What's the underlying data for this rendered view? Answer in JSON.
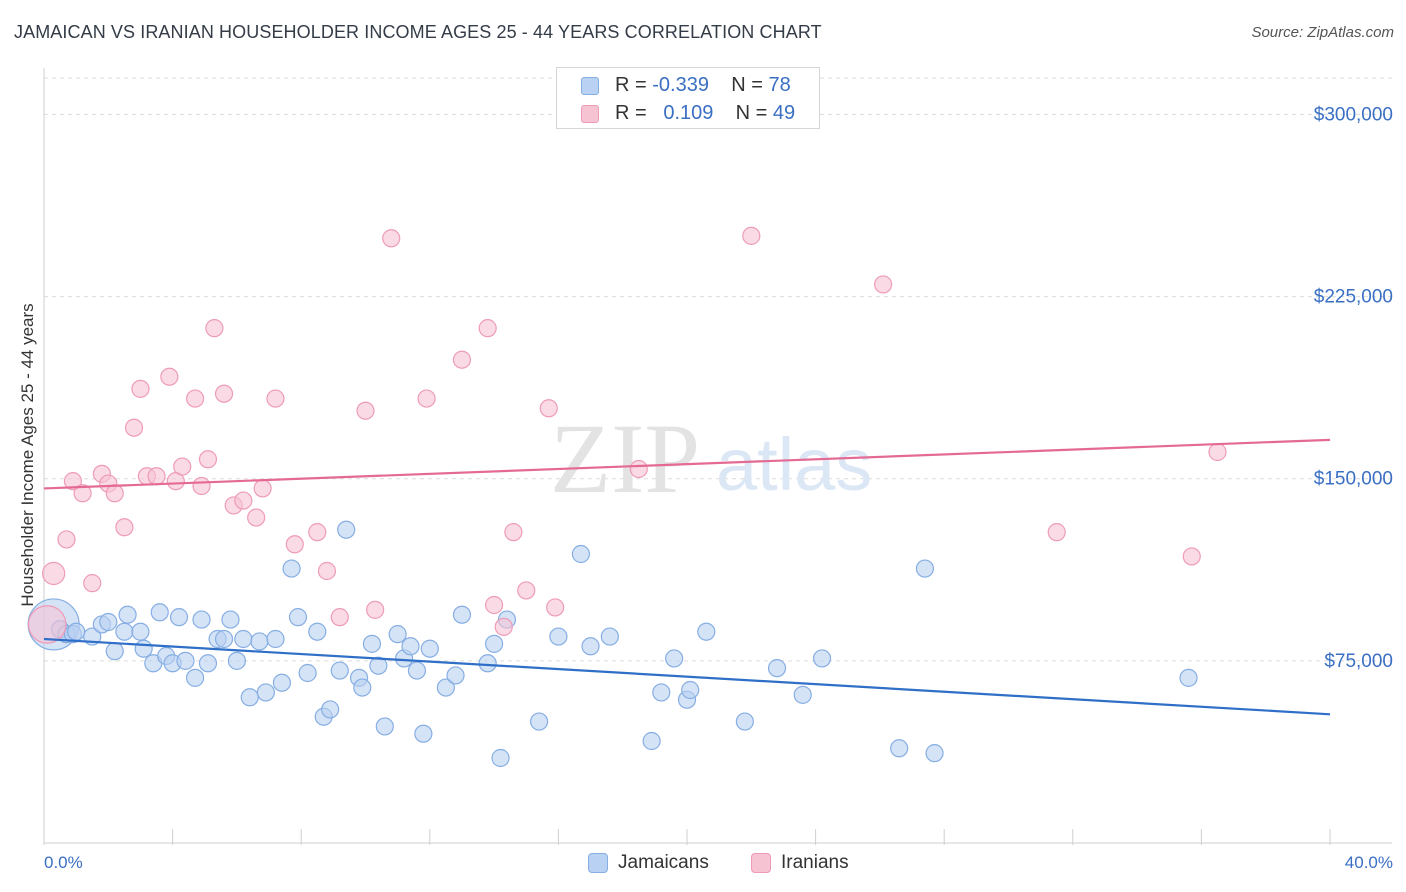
{
  "header": {
    "title": "JAMAICAN VS IRANIAN HOUSEHOLDER INCOME AGES 25 - 44 YEARS CORRELATION CHART",
    "source": "Source: ZipAtlas.com"
  },
  "watermark": {
    "zip": "ZIP",
    "atlas": "atlas"
  },
  "legend_top": [
    {
      "r_label": "R =",
      "r_value": "-0.339",
      "n_label": "N =",
      "n_value": "78"
    },
    {
      "r_label": "R =",
      "r_value": "0.109",
      "n_label": "N =",
      "n_value": "49"
    }
  ],
  "colors": {
    "jamaicans_fill": "#b9d1f2",
    "jamaicans_stroke": "#86aee3",
    "jamaicans_line": "#2f6fc7",
    "iranians_fill": "#f6c3d3",
    "iranians_stroke": "#ee9bb7",
    "iranians_line": "#e46a94",
    "tick_text": "#3a6fc4",
    "grid": "#dcdcdc"
  },
  "chart_data": {
    "type": "scatter",
    "xlabel": "",
    "ylabel": "Householder Income Ages 25 - 44 years",
    "xlim": [
      0,
      40
    ],
    "ylim": [
      0,
      315000
    ],
    "x_tick_labels": {
      "min": "0.0%",
      "max": "40.0%"
    },
    "y_ticks": [
      {
        "value": 75000,
        "label": "$75,000"
      },
      {
        "value": 150000,
        "label": "$150,000"
      },
      {
        "value": 225000,
        "label": "$225,000"
      },
      {
        "value": 300000,
        "label": "$300,000"
      }
    ],
    "grid": true,
    "legend_placement": "bottom",
    "series": [
      {
        "name": "Jamaicans",
        "trend": {
          "x0": 0,
          "y0": 84000,
          "x1": 40,
          "y1": 53000
        },
        "points": [
          [
            0.3,
            90000,
            3
          ],
          [
            0.5,
            88000,
            1
          ],
          [
            0.7,
            86000,
            1
          ],
          [
            0.9,
            86000,
            1
          ],
          [
            1.0,
            87000,
            1
          ],
          [
            1.5,
            85000,
            1
          ],
          [
            1.8,
            90000,
            1
          ],
          [
            2.0,
            91000,
            1
          ],
          [
            2.2,
            79000,
            1
          ],
          [
            2.5,
            87000,
            1
          ],
          [
            2.6,
            94000,
            1
          ],
          [
            3.0,
            87000,
            1
          ],
          [
            3.1,
            80000,
            1
          ],
          [
            3.4,
            74000,
            1
          ],
          [
            3.6,
            95000,
            1
          ],
          [
            3.8,
            77000,
            1
          ],
          [
            4.0,
            74000,
            1
          ],
          [
            4.2,
            93000,
            1
          ],
          [
            4.4,
            75000,
            1
          ],
          [
            4.7,
            68000,
            1
          ],
          [
            4.9,
            92000,
            1
          ],
          [
            5.1,
            74000,
            1
          ],
          [
            5.4,
            84000,
            1
          ],
          [
            5.6,
            84000,
            1
          ],
          [
            5.8,
            92000,
            1
          ],
          [
            6.0,
            75000,
            1
          ],
          [
            6.2,
            84000,
            1
          ],
          [
            6.4,
            60000,
            1
          ],
          [
            6.7,
            83000,
            1
          ],
          [
            6.9,
            62000,
            1
          ],
          [
            7.2,
            84000,
            1
          ],
          [
            7.4,
            66000,
            1
          ],
          [
            7.7,
            113000,
            1
          ],
          [
            7.9,
            93000,
            1
          ],
          [
            8.2,
            70000,
            1
          ],
          [
            8.5,
            87000,
            1
          ],
          [
            8.7,
            52000,
            1
          ],
          [
            8.9,
            55000,
            1
          ],
          [
            9.2,
            71000,
            1
          ],
          [
            9.4,
            129000,
            1
          ],
          [
            9.8,
            68000,
            1
          ],
          [
            9.9,
            64000,
            1
          ],
          [
            10.2,
            82000,
            1
          ],
          [
            10.4,
            73000,
            1
          ],
          [
            10.6,
            48000,
            1
          ],
          [
            11.0,
            86000,
            1
          ],
          [
            11.2,
            76000,
            1
          ],
          [
            11.4,
            81000,
            1
          ],
          [
            11.6,
            71000,
            1
          ],
          [
            11.8,
            45000,
            1
          ],
          [
            12.0,
            80000,
            1
          ],
          [
            12.5,
            64000,
            1
          ],
          [
            12.8,
            69000,
            1
          ],
          [
            13.0,
            94000,
            1
          ],
          [
            13.8,
            74000,
            1
          ],
          [
            14.0,
            82000,
            1
          ],
          [
            14.2,
            35000,
            1
          ],
          [
            14.4,
            92000,
            1
          ],
          [
            15.4,
            50000,
            1
          ],
          [
            16.0,
            85000,
            1
          ],
          [
            16.7,
            119000,
            1
          ],
          [
            17.0,
            81000,
            1
          ],
          [
            17.6,
            85000,
            1
          ],
          [
            18.9,
            42000,
            1
          ],
          [
            19.2,
            62000,
            1
          ],
          [
            19.6,
            76000,
            1
          ],
          [
            20.0,
            59000,
            1
          ],
          [
            20.1,
            63000,
            1
          ],
          [
            20.6,
            87000,
            1
          ],
          [
            21.8,
            50000,
            1
          ],
          [
            22.8,
            72000,
            1
          ],
          [
            23.6,
            61000,
            1
          ],
          [
            24.2,
            76000,
            1
          ],
          [
            26.6,
            39000,
            1
          ],
          [
            27.4,
            113000,
            1
          ],
          [
            27.7,
            37000,
            1
          ],
          [
            35.6,
            68000,
            1
          ]
        ]
      },
      {
        "name": "Iranians",
        "trend": {
          "x0": 0,
          "y0": 146000,
          "x1": 40,
          "y1": 166000
        },
        "points": [
          [
            0.1,
            90000,
            2.2
          ],
          [
            0.3,
            111000,
            1.3
          ],
          [
            0.7,
            125000,
            1
          ],
          [
            0.9,
            149000,
            1
          ],
          [
            1.2,
            144000,
            1
          ],
          [
            1.5,
            107000,
            1
          ],
          [
            1.8,
            152000,
            1
          ],
          [
            2.0,
            148000,
            1
          ],
          [
            2.2,
            144000,
            1
          ],
          [
            2.5,
            130000,
            1
          ],
          [
            2.8,
            171000,
            1
          ],
          [
            3.0,
            187000,
            1
          ],
          [
            3.2,
            151000,
            1
          ],
          [
            3.5,
            151000,
            1
          ],
          [
            3.9,
            192000,
            1
          ],
          [
            4.1,
            149000,
            1
          ],
          [
            4.3,
            155000,
            1
          ],
          [
            4.7,
            183000,
            1
          ],
          [
            4.9,
            147000,
            1
          ],
          [
            5.1,
            158000,
            1
          ],
          [
            5.3,
            212000,
            1
          ],
          [
            5.6,
            185000,
            1
          ],
          [
            5.9,
            139000,
            1
          ],
          [
            6.2,
            141000,
            1
          ],
          [
            6.6,
            134000,
            1
          ],
          [
            6.8,
            146000,
            1
          ],
          [
            7.2,
            183000,
            1
          ],
          [
            7.8,
            123000,
            1
          ],
          [
            8.5,
            128000,
            1
          ],
          [
            8.8,
            112000,
            1
          ],
          [
            9.2,
            93000,
            1
          ],
          [
            10.0,
            178000,
            1
          ],
          [
            10.3,
            96000,
            1
          ],
          [
            10.8,
            249000,
            1
          ],
          [
            11.9,
            183000,
            1
          ],
          [
            13.0,
            199000,
            1
          ],
          [
            13.8,
            212000,
            1
          ],
          [
            14.0,
            98000,
            1
          ],
          [
            14.3,
            89000,
            1
          ],
          [
            14.6,
            128000,
            1
          ],
          [
            15.0,
            104000,
            1
          ],
          [
            15.7,
            179000,
            1
          ],
          [
            15.9,
            97000,
            1
          ],
          [
            18.5,
            154000,
            1
          ],
          [
            22.0,
            250000,
            1
          ],
          [
            26.1,
            230000,
            1
          ],
          [
            31.5,
            128000,
            1
          ],
          [
            35.7,
            118000,
            1
          ],
          [
            36.5,
            161000,
            1
          ]
        ]
      }
    ]
  }
}
